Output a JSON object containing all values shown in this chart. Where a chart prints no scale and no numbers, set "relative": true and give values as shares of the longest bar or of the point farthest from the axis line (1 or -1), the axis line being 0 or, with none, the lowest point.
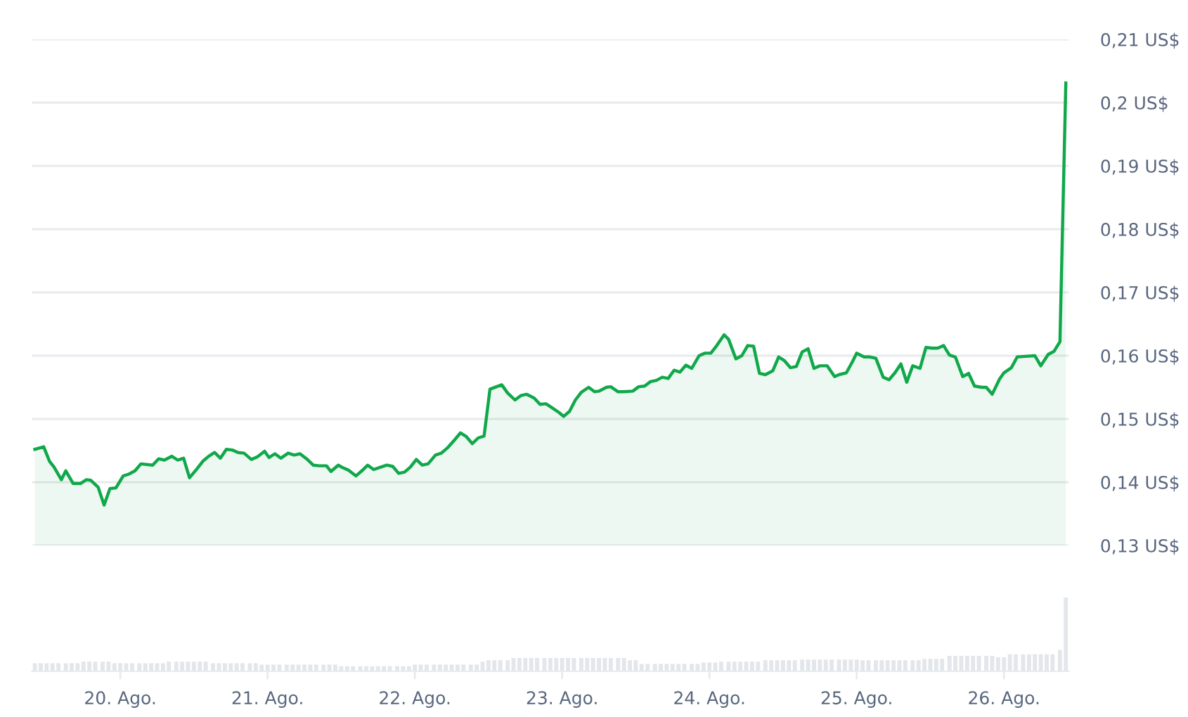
{
  "chart_data": [
    {
      "type": "area",
      "color": "#10a84a",
      "xlim": [
        19.4,
        26.44
      ],
      "ylim": [
        0.13,
        0.21
      ],
      "grid": "y",
      "tick_labels": "y",
      "yticks": [
        {
          "value": 0.13,
          "label": "0,13 US$"
        },
        {
          "value": 0.14,
          "label": "0,14 US$"
        },
        {
          "value": 0.15,
          "label": "0,15 US$"
        },
        {
          "value": 0.16,
          "label": "0,16 US$"
        },
        {
          "value": 0.17,
          "label": "0,17 US$"
        },
        {
          "value": 0.18,
          "label": "0,18 US$"
        },
        {
          "value": 0.19,
          "label": "0,19 US$"
        },
        {
          "value": 0.2,
          "label": "0,2 US$"
        },
        {
          "value": 0.21,
          "label": "0,21 US$"
        }
      ],
      "x": [
        19.42,
        19.48,
        19.52,
        19.55,
        19.6,
        19.63,
        19.68,
        19.73,
        19.77,
        19.8,
        19.85,
        19.89,
        19.93,
        19.97,
        20.02,
        20.06,
        20.1,
        20.14,
        20.22,
        20.26,
        20.3,
        20.35,
        20.39,
        20.43,
        20.47,
        20.52,
        20.56,
        20.6,
        20.64,
        20.68,
        20.72,
        20.76,
        20.8,
        20.84,
        20.89,
        20.93,
        20.98,
        21.01,
        21.05,
        21.09,
        21.14,
        21.18,
        21.22,
        21.27,
        21.31,
        21.35,
        21.4,
        21.43,
        21.48,
        21.51,
        21.55,
        21.6,
        21.64,
        21.68,
        21.72,
        21.77,
        21.81,
        21.85,
        21.89,
        21.93,
        21.97,
        22.01,
        22.05,
        22.09,
        22.14,
        22.18,
        22.22,
        22.27,
        22.31,
        22.35,
        22.39,
        22.43,
        22.47,
        22.51,
        22.59,
        22.63,
        22.68,
        22.72,
        22.76,
        22.81,
        22.85,
        22.89,
        22.93,
        22.98,
        23.01,
        23.05,
        23.09,
        23.13,
        23.18,
        23.22,
        23.25,
        23.3,
        23.33,
        23.38,
        23.42,
        23.48,
        23.52,
        23.56,
        23.6,
        23.64,
        23.68,
        23.72,
        23.76,
        23.8,
        23.84,
        23.88,
        23.93,
        23.97,
        24.01,
        24.05,
        24.1,
        24.13,
        24.18,
        24.22,
        24.26,
        24.3,
        24.34,
        24.38,
        24.43,
        24.47,
        24.51,
        24.55,
        24.59,
        24.63,
        24.67,
        24.71,
        24.75,
        24.8,
        24.85,
        24.88,
        24.93,
        24.97,
        25.0,
        25.05,
        25.09,
        25.13,
        25.18,
        25.22,
        25.26,
        25.3,
        25.34,
        25.38,
        25.43,
        25.47,
        25.51,
        25.55,
        25.59,
        25.63,
        25.67,
        25.72,
        25.76,
        25.8,
        25.85,
        25.88,
        25.92,
        25.97,
        26.0,
        26.05,
        26.09,
        26.15,
        26.21,
        26.25,
        26.3,
        26.34,
        26.38,
        26.42
      ],
      "values": [
        0.1452,
        0.1456,
        0.1433,
        0.1424,
        0.1404,
        0.1418,
        0.1398,
        0.1398,
        0.1404,
        0.1403,
        0.1392,
        0.1364,
        0.139,
        0.1391,
        0.141,
        0.1413,
        0.1418,
        0.1429,
        0.1427,
        0.1437,
        0.1435,
        0.1441,
        0.1435,
        0.1438,
        0.1407,
        0.1421,
        0.1433,
        0.1441,
        0.1447,
        0.1438,
        0.1452,
        0.1451,
        0.1447,
        0.1446,
        0.1436,
        0.144,
        0.1449,
        0.1439,
        0.1445,
        0.1438,
        0.1446,
        0.1443,
        0.1445,
        0.1436,
        0.1427,
        0.1426,
        0.1426,
        0.1417,
        0.1427,
        0.1423,
        0.1419,
        0.141,
        0.1418,
        0.1427,
        0.142,
        0.1424,
        0.1427,
        0.1425,
        0.1414,
        0.1416,
        0.1424,
        0.1436,
        0.1427,
        0.1429,
        0.1443,
        0.1446,
        0.1454,
        0.1467,
        0.1478,
        0.1472,
        0.1461,
        0.147,
        0.1473,
        0.1547,
        0.1554,
        0.1541,
        0.153,
        0.1537,
        0.1539,
        0.1533,
        0.1523,
        0.1524,
        0.1518,
        0.151,
        0.1504,
        0.1512,
        0.153,
        0.1542,
        0.155,
        0.1543,
        0.1544,
        0.155,
        0.1551,
        0.1543,
        0.1543,
        0.1544,
        0.1551,
        0.1552,
        0.1559,
        0.1561,
        0.1566,
        0.1564,
        0.1577,
        0.1574,
        0.1585,
        0.158,
        0.16,
        0.1604,
        0.1604,
        0.1616,
        0.1633,
        0.1626,
        0.1595,
        0.16,
        0.1616,
        0.1615,
        0.1572,
        0.157,
        0.1576,
        0.1598,
        0.1592,
        0.1581,
        0.1583,
        0.1606,
        0.1611,
        0.158,
        0.1584,
        0.1584,
        0.1567,
        0.157,
        0.1573,
        0.159,
        0.1604,
        0.1598,
        0.1598,
        0.1596,
        0.1566,
        0.1562,
        0.1573,
        0.1587,
        0.1558,
        0.1584,
        0.158,
        0.1613,
        0.1612,
        0.1612,
        0.1616,
        0.1601,
        0.1598,
        0.1567,
        0.1572,
        0.1552,
        0.155,
        0.155,
        0.1539,
        0.1563,
        0.1573,
        0.1581,
        0.1598,
        0.1599,
        0.16,
        0.1584,
        0.1602,
        0.1607,
        0.1622,
        0.2031
      ]
    },
    {
      "type": "bar",
      "relative": true,
      "color": "#e3e6ea",
      "xlim": [
        19.4,
        26.44
      ],
      "tick_labels": "x",
      "xticks": [
        {
          "value": 20,
          "label": "20. Ago."
        },
        {
          "value": 21,
          "label": "21. Ago."
        },
        {
          "value": 22,
          "label": "22. Ago."
        },
        {
          "value": 23,
          "label": "23. Ago."
        },
        {
          "value": 24,
          "label": "24. Ago."
        },
        {
          "value": 25,
          "label": "25. Ago."
        },
        {
          "value": 26,
          "label": "26. Ago."
        }
      ],
      "x": [
        19.42,
        19.46,
        19.5,
        19.54,
        19.58,
        19.63,
        19.67,
        19.71,
        19.75,
        19.79,
        19.83,
        19.88,
        19.92,
        19.96,
        20.0,
        20.04,
        20.08,
        20.13,
        20.17,
        20.21,
        20.25,
        20.29,
        20.33,
        20.38,
        20.42,
        20.46,
        20.5,
        20.54,
        20.58,
        20.63,
        20.67,
        20.71,
        20.75,
        20.79,
        20.83,
        20.88,
        20.92,
        20.96,
        21.0,
        21.04,
        21.08,
        21.13,
        21.17,
        21.21,
        21.25,
        21.29,
        21.33,
        21.38,
        21.42,
        21.46,
        21.5,
        21.54,
        21.58,
        21.63,
        21.67,
        21.71,
        21.75,
        21.79,
        21.83,
        21.88,
        21.92,
        21.96,
        22.0,
        22.04,
        22.08,
        22.13,
        22.17,
        22.21,
        22.25,
        22.29,
        22.33,
        22.38,
        22.42,
        22.46,
        22.5,
        22.54,
        22.58,
        22.63,
        22.67,
        22.71,
        22.75,
        22.79,
        22.83,
        22.88,
        22.92,
        22.96,
        23.0,
        23.04,
        23.08,
        23.13,
        23.17,
        23.21,
        23.25,
        23.29,
        23.33,
        23.38,
        23.42,
        23.46,
        23.5,
        23.54,
        23.58,
        23.63,
        23.67,
        23.71,
        23.75,
        23.79,
        23.83,
        23.88,
        23.92,
        23.96,
        24.0,
        24.04,
        24.08,
        24.13,
        24.17,
        24.21,
        24.25,
        24.29,
        24.33,
        24.38,
        24.42,
        24.46,
        24.5,
        24.54,
        24.58,
        24.63,
        24.67,
        24.71,
        24.75,
        24.79,
        24.83,
        24.88,
        24.92,
        24.96,
        25.0,
        25.04,
        25.08,
        25.13,
        25.17,
        25.21,
        25.25,
        25.29,
        25.33,
        25.38,
        25.42,
        25.46,
        25.5,
        25.54,
        25.58,
        25.63,
        25.67,
        25.71,
        25.75,
        25.79,
        25.83,
        25.88,
        25.92,
        25.96,
        26.0,
        26.04,
        26.08,
        26.13,
        26.17,
        26.21,
        26.25,
        26.29,
        26.33,
        26.38,
        26.42
      ],
      "values": [
        0.11,
        0.11,
        0.11,
        0.11,
        0.11,
        0.11,
        0.11,
        0.11,
        0.13,
        0.13,
        0.13,
        0.13,
        0.13,
        0.11,
        0.11,
        0.11,
        0.11,
        0.11,
        0.11,
        0.11,
        0.11,
        0.11,
        0.13,
        0.13,
        0.13,
        0.13,
        0.13,
        0.13,
        0.13,
        0.11,
        0.11,
        0.11,
        0.11,
        0.11,
        0.11,
        0.11,
        0.11,
        0.09,
        0.09,
        0.09,
        0.09,
        0.09,
        0.09,
        0.09,
        0.09,
        0.09,
        0.09,
        0.09,
        0.09,
        0.09,
        0.07,
        0.07,
        0.07,
        0.07,
        0.07,
        0.07,
        0.07,
        0.07,
        0.07,
        0.07,
        0.07,
        0.07,
        0.09,
        0.09,
        0.09,
        0.09,
        0.09,
        0.09,
        0.09,
        0.09,
        0.09,
        0.09,
        0.09,
        0.13,
        0.15,
        0.15,
        0.15,
        0.15,
        0.18,
        0.18,
        0.18,
        0.18,
        0.18,
        0.18,
        0.18,
        0.18,
        0.18,
        0.18,
        0.18,
        0.18,
        0.18,
        0.18,
        0.18,
        0.18,
        0.18,
        0.18,
        0.18,
        0.15,
        0.15,
        0.1,
        0.1,
        0.1,
        0.1,
        0.1,
        0.1,
        0.1,
        0.1,
        0.1,
        0.1,
        0.12,
        0.12,
        0.12,
        0.13,
        0.13,
        0.13,
        0.13,
        0.13,
        0.13,
        0.13,
        0.15,
        0.15,
        0.15,
        0.15,
        0.15,
        0.15,
        0.16,
        0.16,
        0.16,
        0.16,
        0.16,
        0.16,
        0.16,
        0.16,
        0.16,
        0.16,
        0.15,
        0.15,
        0.15,
        0.15,
        0.15,
        0.15,
        0.15,
        0.15,
        0.15,
        0.15,
        0.17,
        0.17,
        0.17,
        0.17,
        0.21,
        0.21,
        0.21,
        0.21,
        0.21,
        0.21,
        0.21,
        0.21,
        0.19,
        0.19,
        0.23,
        0.23,
        0.23,
        0.23,
        0.23,
        0.23,
        0.23,
        0.23,
        0.29,
        1
      ]
    }
  ]
}
